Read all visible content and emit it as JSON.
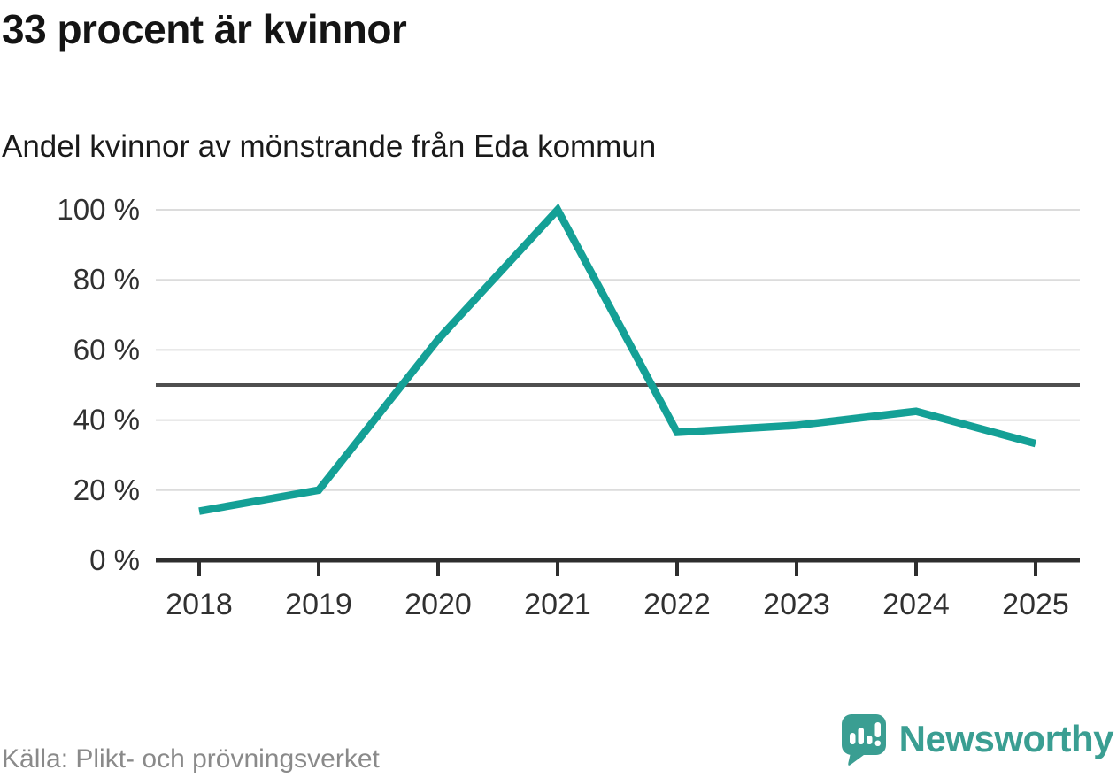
{
  "header": {
    "title": "33 procent är kvinnor",
    "subtitle": "Andel kvinnor av mönstrande från Eda kommun"
  },
  "footer": {
    "source": "Källa: Plikt- och prövningsverket",
    "brand": "Newsworthy"
  },
  "chart_data": {
    "type": "line",
    "title": "33 procent är kvinnor",
    "subtitle": "Andel kvinnor av mönstrande från Eda kommun",
    "x": [
      2018,
      2019,
      2020,
      2021,
      2022,
      2023,
      2024,
      2025
    ],
    "series": [
      {
        "name": "Andel kvinnor av mönstrande",
        "values": [
          14,
          20,
          63,
          100,
          36.5,
          38.5,
          42.5,
          33.3
        ]
      }
    ],
    "xlabel": "",
    "ylabel": "",
    "ylim": [
      0,
      100
    ],
    "y_tick_step": 20,
    "y_tick_suffix": " %",
    "y_tick_labels": [
      "0 %",
      "20 %",
      "40 %",
      "60 %",
      "80 %",
      "100 %"
    ],
    "reference_line": 50,
    "grid": true,
    "legend_position": "none",
    "source": "Källa: Plikt- och prövningsverket",
    "colors": {
      "line": "#14a096",
      "grid": "#dcdcdc",
      "reference_line": "#4f4f4f",
      "axis": "#2e2e2e",
      "tick_label": "#303030",
      "source_text": "#8a8a8a",
      "brand_teal": "#3a9e92"
    }
  }
}
